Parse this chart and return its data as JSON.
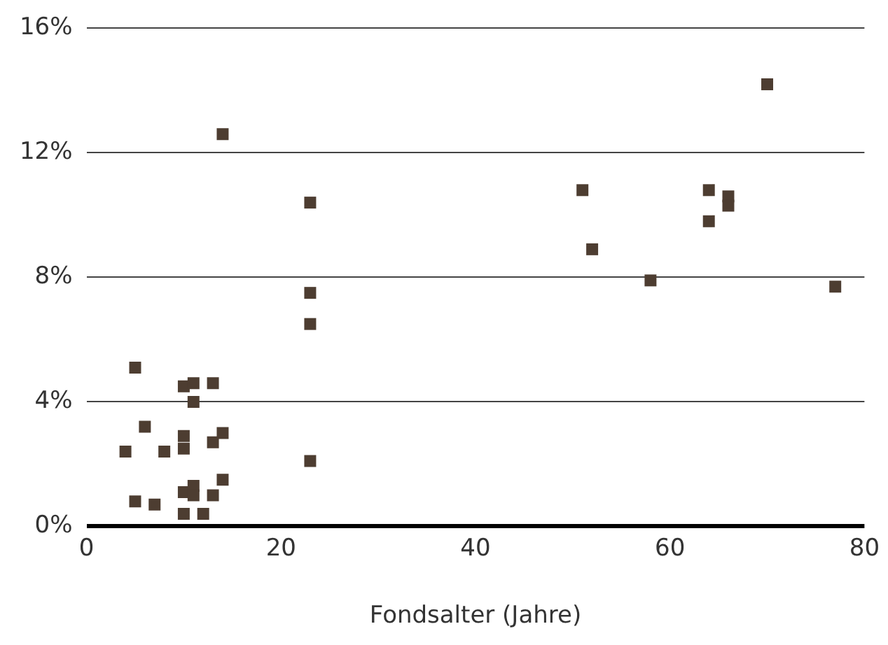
{
  "chart_data": {
    "type": "scatter",
    "xlabel": "Fondsalter (Jahre)",
    "marker": "square",
    "grid": "y",
    "xlim": [
      0,
      80
    ],
    "xticks": [
      0,
      20,
      40,
      60,
      80
    ],
    "ylim": [
      0,
      16
    ],
    "yticks": [
      {
        "value": 0,
        "label": "0%"
      },
      {
        "value": 4,
        "label": "4%"
      },
      {
        "value": 8,
        "label": "8%"
      },
      {
        "value": 12,
        "label": "12%"
      },
      {
        "value": 16,
        "label": "16%"
      }
    ],
    "series": [
      {
        "color": "#4d3d31",
        "x": [
          4,
          5,
          5,
          6,
          7,
          8,
          10,
          10,
          10,
          10,
          10,
          11,
          11,
          11,
          11,
          12,
          13,
          13,
          13,
          14,
          14,
          14,
          23,
          23,
          23,
          23,
          51,
          52,
          58,
          64,
          64,
          66,
          66,
          70,
          77
        ],
        "values": [
          2.4,
          5.1,
          0.8,
          3.2,
          0.7,
          2.4,
          4.5,
          2.9,
          2.5,
          1.1,
          0.4,
          4.6,
          4.0,
          1.3,
          1.0,
          0.4,
          4.6,
          2.7,
          1.0,
          3.0,
          1.5,
          12.6,
          10.4,
          7.5,
          6.5,
          2.1,
          10.8,
          8.9,
          7.9,
          10.8,
          9.8,
          10.6,
          10.3,
          14.2,
          7.7
        ]
      }
    ]
  }
}
